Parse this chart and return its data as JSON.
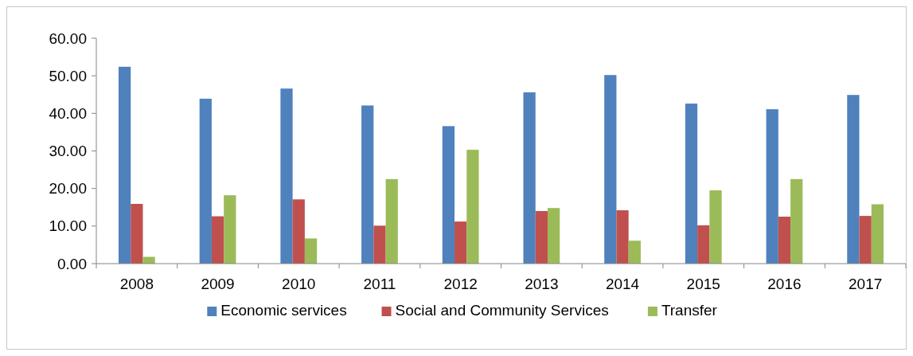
{
  "chart_data": {
    "type": "bar",
    "categories": [
      "2008",
      "2009",
      "2010",
      "2011",
      "2012",
      "2013",
      "2014",
      "2015",
      "2016",
      "2017"
    ],
    "series": [
      {
        "name": "Economic services",
        "color": "#4f81bd",
        "values": [
          52.4,
          43.9,
          46.6,
          42.1,
          36.6,
          45.6,
          50.2,
          42.6,
          41.1,
          44.9
        ]
      },
      {
        "name": "Social and Community Services",
        "color": "#c0504d",
        "values": [
          15.9,
          12.6,
          17.1,
          10.1,
          11.2,
          14.0,
          14.2,
          10.2,
          12.5,
          12.7
        ]
      },
      {
        "name": "Transfer",
        "color": "#9bbb59",
        "values": [
          1.8,
          18.2,
          6.7,
          22.5,
          30.3,
          14.8,
          6.1,
          19.5,
          22.5,
          15.8
        ]
      }
    ],
    "ylim": [
      0,
      60
    ],
    "yticks": [
      {
        "value": 0,
        "label": "0.00"
      },
      {
        "value": 10,
        "label": "10.00"
      },
      {
        "value": 20,
        "label": "20.00"
      },
      {
        "value": 30,
        "label": "30.00"
      },
      {
        "value": 40,
        "label": "40.00"
      },
      {
        "value": 50,
        "label": "50.00"
      },
      {
        "value": 60,
        "label": "60.00"
      }
    ],
    "grid": false,
    "legend": "bottom"
  }
}
